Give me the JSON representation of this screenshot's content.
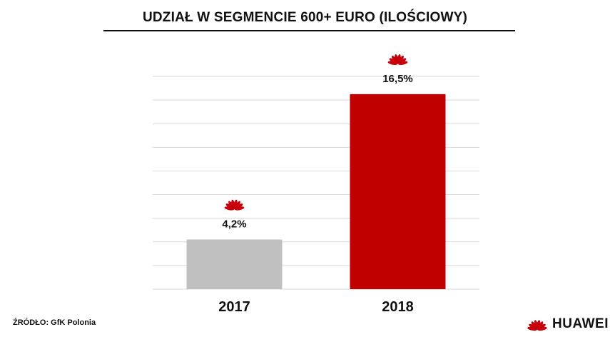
{
  "page": {
    "title": "UDZIAŁ W SEGMENCIE 600+ EURO (ILOŚCIOWY)",
    "source": "ŹRÓDŁO: GfK Polonia",
    "brand": "HUAWEI"
  },
  "chart_data": {
    "type": "bar",
    "title": "UDZIAŁ W SEGMENCIE 600+ EURO (ILOŚCIOWY)",
    "categories": [
      "2017",
      "2018"
    ],
    "values": [
      4.2,
      16.5
    ],
    "value_labels": [
      "4,2%",
      "16,5%"
    ],
    "ylim": [
      0,
      18
    ],
    "grid": true,
    "legend": "none",
    "colors": [
      "#c0c0c0",
      "#c00000"
    ],
    "bar_logo_icon": "huawei-logo-icon"
  },
  "colors": {
    "brand_red": "#c7000b",
    "grid": "#d9d9d9"
  }
}
